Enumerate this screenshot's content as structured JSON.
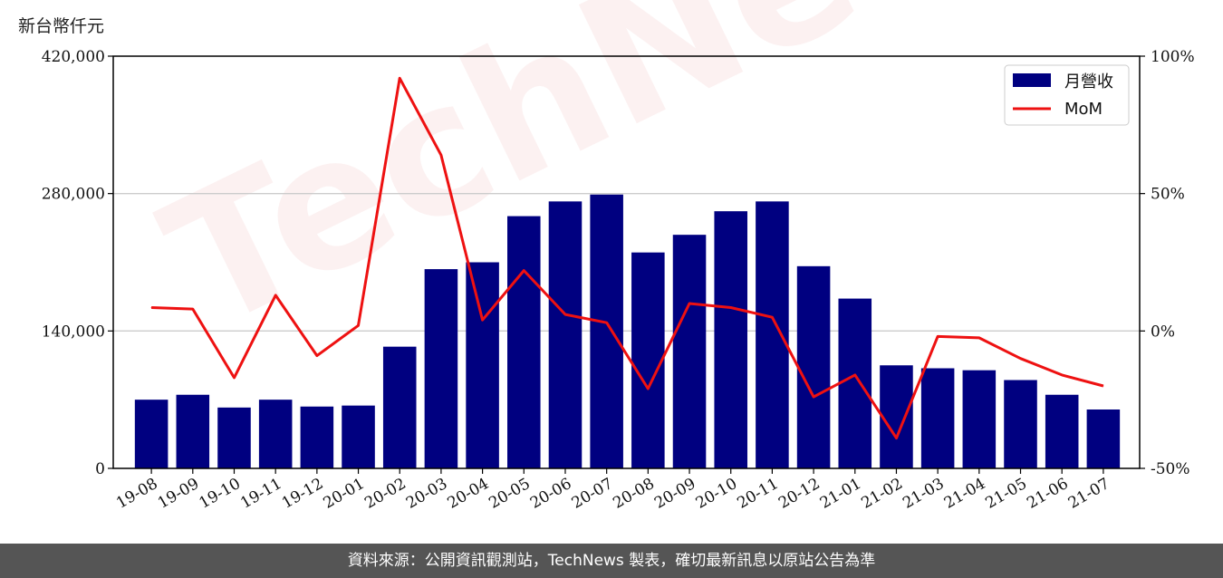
{
  "unit_label": "新台幣仟元",
  "footer_text": "資料來源：公開資訊觀測站，TechNews 製表，確切最新訊息以原站公告為準",
  "watermark_text": "TechNews",
  "chart_data": {
    "type": "bar",
    "categories": [
      "19-08",
      "19-09",
      "19-10",
      "19-11",
      "19-12",
      "20-01",
      "20-02",
      "20-03",
      "20-04",
      "20-05",
      "20-06",
      "20-07",
      "20-08",
      "20-09",
      "20-10",
      "20-11",
      "20-12",
      "21-01",
      "21-02",
      "21-03",
      "21-04",
      "21-05",
      "21-06",
      "21-07"
    ],
    "series": [
      {
        "name": "月營收",
        "type": "bar",
        "axis": "left",
        "color": "#000080",
        "values": [
          70000,
          75000,
          62000,
          70000,
          63000,
          64000,
          124000,
          203000,
          210000,
          257000,
          272000,
          279000,
          220000,
          238000,
          262000,
          272000,
          206000,
          173000,
          105000,
          102000,
          100000,
          90000,
          75000,
          60000
        ]
      },
      {
        "name": "MoM",
        "type": "line",
        "axis": "right",
        "color": "#ee1111",
        "values": [
          8.5,
          8,
          -17,
          13,
          -9,
          2,
          92,
          64,
          4,
          22,
          6,
          3,
          -21,
          10,
          8.5,
          5,
          -24,
          -16,
          -39,
          -2,
          -2.5,
          -10,
          -16,
          -20
        ]
      }
    ],
    "y_left": {
      "lim": [
        0,
        420000
      ],
      "ticks": [
        0,
        140000,
        280000,
        420000
      ],
      "tick_labels": [
        "0",
        "140,000",
        "280,000",
        "420,000"
      ]
    },
    "y_right": {
      "lim": [
        -50,
        100
      ],
      "ticks": [
        -50,
        0,
        50,
        100
      ],
      "tick_labels": [
        "-50%",
        "0%",
        "50%",
        "100%"
      ]
    },
    "grid": "horizontal",
    "legend_position": "top-right"
  }
}
